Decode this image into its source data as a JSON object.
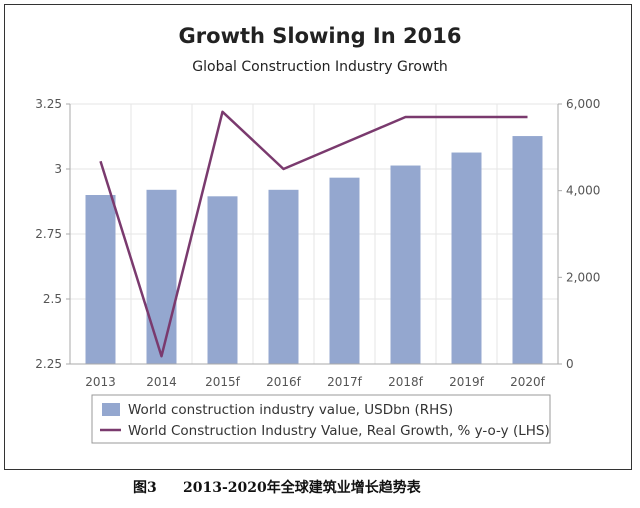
{
  "chart_data": {
    "type": "bar+line",
    "title": "Growth Slowing In 2016",
    "subtitle": "Global Construction Industry Growth",
    "categories": [
      "2013",
      "2014",
      "2015f",
      "2016f",
      "2017f",
      "2018f",
      "2019f",
      "2020f"
    ],
    "bars": {
      "name": "World construction industry value, USDbn (RHS)",
      "axis": "right",
      "color": "#94a7cf",
      "values": [
        3900,
        4020,
        3870,
        4020,
        4300,
        4580,
        4880,
        5260
      ]
    },
    "line": {
      "name": "World Construction Industry Value, Real Growth, % y-o-y (LHS)",
      "axis": "left",
      "color": "#7a3a6e",
      "values": [
        3.03,
        2.28,
        3.22,
        3.0,
        3.1,
        3.2,
        3.2,
        3.2
      ]
    },
    "left_axis": {
      "min": 2.25,
      "max": 3.25,
      "ticks": [
        3.25,
        3,
        2.75,
        2.5,
        2.25
      ],
      "tick_labels": [
        "3.25",
        "3",
        "2.75",
        "2.5",
        "2.25"
      ]
    },
    "right_axis": {
      "min": 0,
      "max": 6000,
      "ticks": [
        6000,
        4000,
        2000,
        0
      ],
      "tick_labels": [
        "6,000",
        "4,000",
        "2,000",
        "0"
      ]
    },
    "grid": true,
    "legend_position": "bottom"
  },
  "caption": {
    "figure_label": "图3",
    "text": "2013-2020年全球建筑业增长趋势表"
  }
}
